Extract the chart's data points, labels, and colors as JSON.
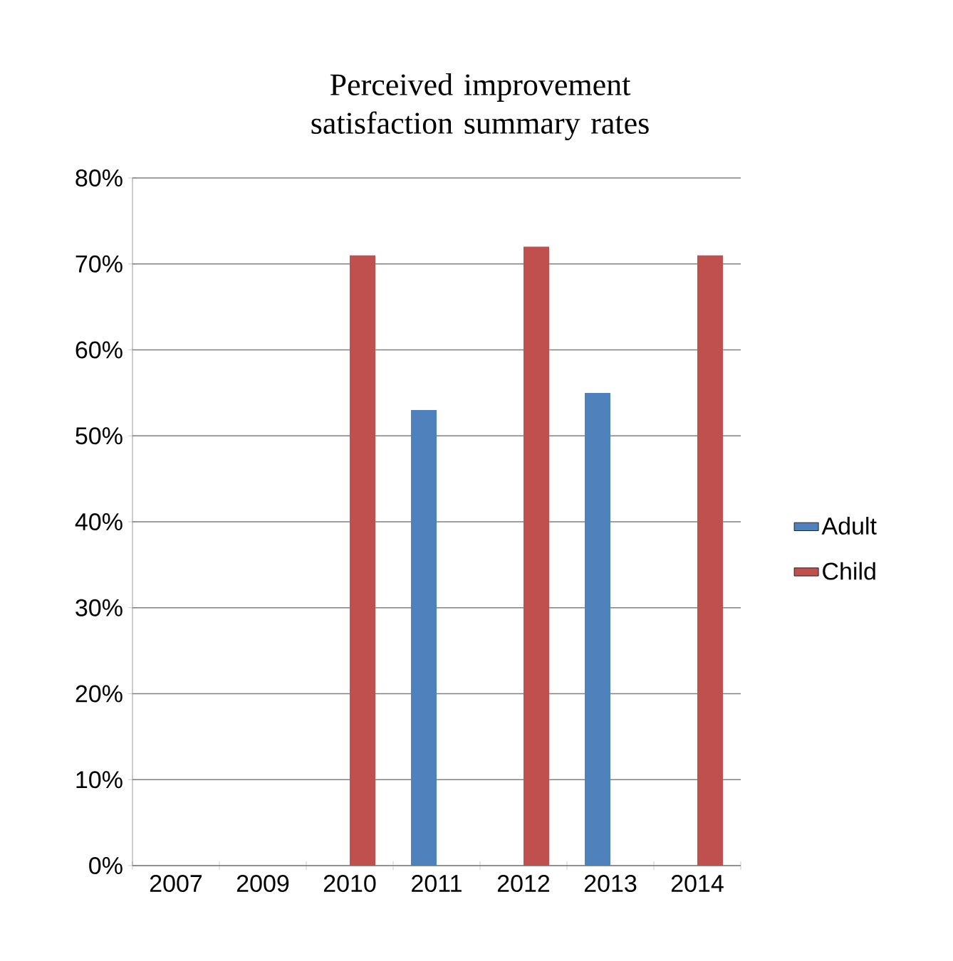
{
  "chart_data": {
    "type": "bar",
    "title": "Perceived improvement satisfaction summary rates",
    "categories": [
      "2007",
      "2009",
      "2010",
      "2011",
      "2012",
      "2013",
      "2014"
    ],
    "series": [
      {
        "name": "Adult",
        "color": "#4f81bd",
        "values": [
          null,
          null,
          null,
          53,
          null,
          55,
          null
        ]
      },
      {
        "name": "Child",
        "color": "#c0504d",
        "values": [
          null,
          null,
          71,
          null,
          72,
          null,
          71
        ]
      }
    ],
    "ylim": [
      0,
      80
    ],
    "yticks": [
      {
        "value": 0,
        "label": "0%"
      },
      {
        "value": 10,
        "label": "10%"
      },
      {
        "value": 20,
        "label": "20%"
      },
      {
        "value": 30,
        "label": "30%"
      },
      {
        "value": 40,
        "label": "40%"
      },
      {
        "value": 50,
        "label": "50%"
      },
      {
        "value": 60,
        "label": "60%"
      },
      {
        "value": 70,
        "label": "70%"
      },
      {
        "value": 80,
        "label": "80%"
      }
    ],
    "grid": "y",
    "legend": "right"
  }
}
